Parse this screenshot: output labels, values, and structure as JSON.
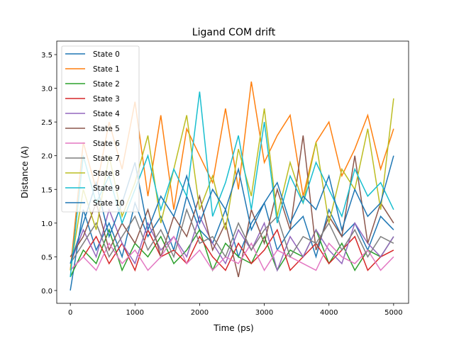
{
  "chart_data": {
    "type": "line",
    "title": "Ligand COM drift",
    "xlabel": "Time (ps)",
    "ylabel": "Distance (A)",
    "xlim": [
      -210,
      5232
    ],
    "ylim": [
      -0.19,
      3.7
    ],
    "xticks": [
      0,
      1000,
      2000,
      3000,
      4000,
      5000
    ],
    "yticks": [
      0.0,
      0.5,
      1.0,
      1.5,
      2.0,
      2.5,
      3.0,
      3.5
    ],
    "ytick_labels": [
      "0.0",
      "0.5",
      "1.0",
      "1.5",
      "2.0",
      "2.5",
      "3.0",
      "3.5"
    ],
    "grid": false,
    "legend": "upper-left",
    "x": [
      0,
      200,
      400,
      600,
      800,
      1000,
      1200,
      1400,
      1600,
      1800,
      2000,
      2200,
      2400,
      2600,
      2800,
      3000,
      3200,
      3400,
      3600,
      3800,
      4000,
      4200,
      4400,
      4600,
      4800,
      5000
    ],
    "series": [
      {
        "name": "State 0",
        "color": "#1f77b4",
        "values": [
          0,
          1.2,
          0.6,
          1.0,
          0.5,
          1.3,
          0.8,
          1.1,
          0.6,
          1.4,
          0.9,
          0.7,
          1.2,
          0.5,
          1.0,
          1.3,
          0.6,
          0.9,
          1.1,
          0.5,
          1.2,
          0.8,
          1.0,
          0.6,
          1.1,
          0.9
        ]
      },
      {
        "name": "State 1",
        "color": "#ff7f0e",
        "values": [
          0.3,
          2.2,
          1.5,
          2.5,
          1.8,
          2.8,
          1.4,
          2.6,
          1.2,
          2.4,
          2.0,
          1.6,
          2.7,
          1.5,
          3.1,
          1.9,
          2.3,
          2.6,
          1.4,
          2.2,
          2.5,
          1.7,
          2.1,
          2.6,
          1.8,
          2.4
        ]
      },
      {
        "name": "State 2",
        "color": "#2ca02c",
        "values": [
          0.2,
          0.6,
          0.4,
          0.9,
          0.3,
          0.7,
          0.5,
          0.8,
          0.4,
          0.6,
          0.9,
          0.3,
          0.7,
          0.5,
          0.4,
          0.8,
          0.3,
          0.6,
          0.5,
          0.9,
          0.4,
          0.7,
          0.3,
          0.6,
          0.5,
          0.8
        ]
      },
      {
        "name": "State 3",
        "color": "#d62728",
        "values": [
          0.3,
          0.5,
          0.8,
          0.4,
          0.7,
          0.3,
          0.9,
          0.5,
          0.6,
          0.4,
          0.8,
          0.5,
          0.3,
          0.7,
          0.4,
          0.6,
          0.9,
          0.3,
          0.5,
          0.7,
          0.4,
          0.6,
          0.8,
          0.3,
          0.5,
          0.6
        ]
      },
      {
        "name": "State 4",
        "color": "#9467bd",
        "values": [
          0.4,
          0.9,
          0.5,
          1.2,
          0.7,
          0.4,
          1.0,
          0.6,
          0.8,
          0.5,
          1.1,
          0.7,
          0.4,
          0.9,
          0.6,
          1.0,
          0.3,
          0.8,
          0.5,
          0.9,
          0.6,
          0.4,
          1.0,
          0.7,
          0.5,
          0.8
        ]
      },
      {
        "name": "State 5",
        "color": "#8c564b",
        "values": [
          0.5,
          0.8,
          1.3,
          0.6,
          1.0,
          0.7,
          1.2,
          0.5,
          1.1,
          0.8,
          1.4,
          0.6,
          1.0,
          0.2,
          1.2,
          0.7,
          1.5,
          0.9,
          2.3,
          0.6,
          1.1,
          0.8,
          2.0,
          0.7,
          1.3,
          1.0
        ]
      },
      {
        "name": "State 6",
        "color": "#e377c2",
        "values": [
          0.3,
          0.5,
          0.3,
          0.7,
          0.4,
          0.6,
          0.3,
          0.5,
          0.8,
          0.4,
          0.6,
          0.3,
          0.5,
          0.4,
          0.7,
          0.3,
          0.6,
          0.5,
          0.4,
          0.3,
          0.7,
          0.5,
          0.4,
          0.6,
          0.3,
          0.5
        ]
      },
      {
        "name": "State 7",
        "color": "#7f7f7f",
        "values": [
          0.4,
          0.7,
          1.0,
          0.5,
          0.8,
          1.1,
          0.6,
          0.9,
          0.5,
          1.2,
          0.7,
          0.8,
          0.5,
          1.0,
          0.6,
          0.9,
          1.1,
          0.5,
          0.8,
          0.7,
          1.0,
          0.6,
          0.9,
          0.5,
          0.8,
          0.7
        ]
      },
      {
        "name": "State 8",
        "color": "#bcbd22",
        "values": [
          0.3,
          1.5,
          0.9,
          2.0,
          1.1,
          1.6,
          2.3,
          1.0,
          1.8,
          2.6,
          1.2,
          1.7,
          0.9,
          2.1,
          1.4,
          2.7,
          1.1,
          1.9,
          1.3,
          2.2,
          1.0,
          1.8,
          1.5,
          2.4,
          1.2,
          2.85
        ]
      },
      {
        "name": "State 9",
        "color": "#17becf",
        "values": [
          0.2,
          2.0,
          1.3,
          1.7,
          1.0,
          1.5,
          2.0,
          1.2,
          1.8,
          1.4,
          2.95,
          1.1,
          1.6,
          2.3,
          1.2,
          2.5,
          1.0,
          1.7,
          1.3,
          1.9,
          1.5,
          1.1,
          1.8,
          1.4,
          1.6,
          1.2
        ]
      },
      {
        "name": "State 10",
        "color": "#1f77b4",
        "values": [
          0.4,
          1.0,
          1.6,
          0.8,
          1.3,
          1.9,
          0.9,
          1.4,
          1.1,
          1.7,
          1.0,
          1.5,
          1.2,
          1.8,
          0.9,
          1.3,
          1.6,
          1.0,
          1.4,
          1.2,
          1.7,
          0.9,
          1.5,
          1.1,
          1.3,
          2.0
        ]
      }
    ]
  }
}
